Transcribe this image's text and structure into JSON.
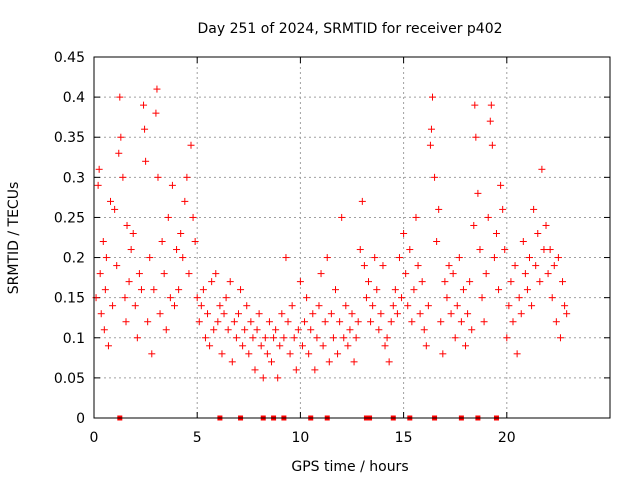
{
  "chart_data": {
    "type": "scatter",
    "title": "Day 251 of 2024, SRMTID for receiver p402",
    "xlabel": "GPS time / hours",
    "ylabel": "SRMTID / TECUs",
    "xlim": [
      0,
      25
    ],
    "ylim": [
      0,
      0.45
    ],
    "grid": true,
    "marker": "+",
    "marker_color": "#ff0000",
    "x_tick_labels": [
      "0",
      "5",
      "10",
      "15",
      "20"
    ],
    "x_ticks": [
      0,
      5,
      10,
      15,
      20
    ],
    "y_tick_labels": [
      "0",
      "0.05",
      "0.1",
      "0.15",
      "0.2",
      "0.25",
      "0.3",
      "0.35",
      "0.4",
      "0.45"
    ],
    "y_ticks": [
      0,
      0.05,
      0.1,
      0.15,
      0.2,
      0.25,
      0.3,
      0.35,
      0.4,
      0.45
    ],
    "baseline_markers_x": [
      1.25,
      6.1,
      7.1,
      8.2,
      8.7,
      9.2,
      10.5,
      11.3,
      13.2,
      13.35,
      14.5,
      15.3,
      16.5,
      17.8,
      18.6,
      19.5
    ],
    "series": [
      {
        "name": "SRMTID",
        "points": [
          [
            0.1,
            0.15
          ],
          [
            0.2,
            0.29
          ],
          [
            0.25,
            0.31
          ],
          [
            0.3,
            0.18
          ],
          [
            0.35,
            0.13
          ],
          [
            0.45,
            0.22
          ],
          [
            0.5,
            0.11
          ],
          [
            0.55,
            0.16
          ],
          [
            0.6,
            0.2
          ],
          [
            0.7,
            0.09
          ],
          [
            0.8,
            0.27
          ],
          [
            0.9,
            0.14
          ],
          [
            1.0,
            0.26
          ],
          [
            1.1,
            0.19
          ],
          [
            1.2,
            0.33
          ],
          [
            1.25,
            0.4
          ],
          [
            1.3,
            0.35
          ],
          [
            1.4,
            0.3
          ],
          [
            1.5,
            0.15
          ],
          [
            1.55,
            0.12
          ],
          [
            1.6,
            0.24
          ],
          [
            1.7,
            0.17
          ],
          [
            1.8,
            0.21
          ],
          [
            1.9,
            0.23
          ],
          [
            2.0,
            0.14
          ],
          [
            2.1,
            0.1
          ],
          [
            2.2,
            0.18
          ],
          [
            2.3,
            0.16
          ],
          [
            2.4,
            0.39
          ],
          [
            2.45,
            0.36
          ],
          [
            2.5,
            0.32
          ],
          [
            2.6,
            0.12
          ],
          [
            2.7,
            0.2
          ],
          [
            2.8,
            0.08
          ],
          [
            2.9,
            0.16
          ],
          [
            3.0,
            0.38
          ],
          [
            3.05,
            0.41
          ],
          [
            3.1,
            0.3
          ],
          [
            3.2,
            0.13
          ],
          [
            3.3,
            0.22
          ],
          [
            3.4,
            0.18
          ],
          [
            3.5,
            0.11
          ],
          [
            3.6,
            0.25
          ],
          [
            3.7,
            0.15
          ],
          [
            3.8,
            0.29
          ],
          [
            3.9,
            0.14
          ],
          [
            4.0,
            0.21
          ],
          [
            4.1,
            0.16
          ],
          [
            4.2,
            0.23
          ],
          [
            4.3,
            0.2
          ],
          [
            4.4,
            0.27
          ],
          [
            4.5,
            0.3
          ],
          [
            4.6,
            0.18
          ],
          [
            4.7,
            0.34
          ],
          [
            4.8,
            0.25
          ],
          [
            4.9,
            0.22
          ],
          [
            5.0,
            0.15
          ],
          [
            5.1,
            0.12
          ],
          [
            5.2,
            0.14
          ],
          [
            5.3,
            0.16
          ],
          [
            5.4,
            0.1
          ],
          [
            5.5,
            0.13
          ],
          [
            5.6,
            0.09
          ],
          [
            5.7,
            0.17
          ],
          [
            5.8,
            0.11
          ],
          [
            5.9,
            0.18
          ],
          [
            6.0,
            0.12
          ],
          [
            6.1,
            0.14
          ],
          [
            6.2,
            0.08
          ],
          [
            6.3,
            0.13
          ],
          [
            6.4,
            0.15
          ],
          [
            6.5,
            0.11
          ],
          [
            6.6,
            0.17
          ],
          [
            6.7,
            0.07
          ],
          [
            6.8,
            0.12
          ],
          [
            6.9,
            0.1
          ],
          [
            7.0,
            0.13
          ],
          [
            7.1,
            0.16
          ],
          [
            7.2,
            0.09
          ],
          [
            7.3,
            0.11
          ],
          [
            7.4,
            0.14
          ],
          [
            7.5,
            0.08
          ],
          [
            7.6,
            0.12
          ],
          [
            7.7,
            0.1
          ],
          [
            7.8,
            0.06
          ],
          [
            7.9,
            0.11
          ],
          [
            8.0,
            0.13
          ],
          [
            8.1,
            0.09
          ],
          [
            8.2,
            0.05
          ],
          [
            8.3,
            0.1
          ],
          [
            8.4,
            0.08
          ],
          [
            8.5,
            0.12
          ],
          [
            8.6,
            0.07
          ],
          [
            8.7,
            0.1
          ],
          [
            8.8,
            0.11
          ],
          [
            8.9,
            0.05
          ],
          [
            9.0,
            0.09
          ],
          [
            9.1,
            0.13
          ],
          [
            9.2,
            0.1
          ],
          [
            9.3,
            0.2
          ],
          [
            9.4,
            0.12
          ],
          [
            9.5,
            0.08
          ],
          [
            9.6,
            0.14
          ],
          [
            9.7,
            0.1
          ],
          [
            9.8,
            0.06
          ],
          [
            9.9,
            0.11
          ],
          [
            10.0,
            0.17
          ],
          [
            10.1,
            0.09
          ],
          [
            10.2,
            0.12
          ],
          [
            10.3,
            0.15
          ],
          [
            10.4,
            0.08
          ],
          [
            10.5,
            0.11
          ],
          [
            10.6,
            0.13
          ],
          [
            10.7,
            0.06
          ],
          [
            10.8,
            0.1
          ],
          [
            10.9,
            0.14
          ],
          [
            11.0,
            0.18
          ],
          [
            11.1,
            0.09
          ],
          [
            11.2,
            0.12
          ],
          [
            11.3,
            0.2
          ],
          [
            11.4,
            0.07
          ],
          [
            11.5,
            0.13
          ],
          [
            11.6,
            0.1
          ],
          [
            11.7,
            0.16
          ],
          [
            11.8,
            0.08
          ],
          [
            11.9,
            0.12
          ],
          [
            12.0,
            0.25
          ],
          [
            12.1,
            0.1
          ],
          [
            12.2,
            0.14
          ],
          [
            12.3,
            0.09
          ],
          [
            12.4,
            0.11
          ],
          [
            12.5,
            0.13
          ],
          [
            12.6,
            0.07
          ],
          [
            12.7,
            0.1
          ],
          [
            12.8,
            0.12
          ],
          [
            12.9,
            0.21
          ],
          [
            13.0,
            0.27
          ],
          [
            13.1,
            0.19
          ],
          [
            13.2,
            0.15
          ],
          [
            13.3,
            0.17
          ],
          [
            13.4,
            0.12
          ],
          [
            13.5,
            0.14
          ],
          [
            13.6,
            0.2
          ],
          [
            13.7,
            0.16
          ],
          [
            13.8,
            0.11
          ],
          [
            13.9,
            0.13
          ],
          [
            14.0,
            0.19
          ],
          [
            14.1,
            0.09
          ],
          [
            14.2,
            0.1
          ],
          [
            14.3,
            0.07
          ],
          [
            14.4,
            0.12
          ],
          [
            14.5,
            0.14
          ],
          [
            14.6,
            0.16
          ],
          [
            14.7,
            0.13
          ],
          [
            14.8,
            0.2
          ],
          [
            14.9,
            0.15
          ],
          [
            15.0,
            0.23
          ],
          [
            15.1,
            0.18
          ],
          [
            15.2,
            0.14
          ],
          [
            15.3,
            0.21
          ],
          [
            15.4,
            0.12
          ],
          [
            15.5,
            0.16
          ],
          [
            15.6,
            0.25
          ],
          [
            15.7,
            0.19
          ],
          [
            15.8,
            0.13
          ],
          [
            15.9,
            0.17
          ],
          [
            16.0,
            0.11
          ],
          [
            16.1,
            0.09
          ],
          [
            16.2,
            0.14
          ],
          [
            16.3,
            0.34
          ],
          [
            16.35,
            0.36
          ],
          [
            16.4,
            0.4
          ],
          [
            16.5,
            0.3
          ],
          [
            16.6,
            0.22
          ],
          [
            16.7,
            0.26
          ],
          [
            16.8,
            0.12
          ],
          [
            16.9,
            0.08
          ],
          [
            17.0,
            0.17
          ],
          [
            17.1,
            0.15
          ],
          [
            17.2,
            0.19
          ],
          [
            17.3,
            0.13
          ],
          [
            17.4,
            0.18
          ],
          [
            17.5,
            0.1
          ],
          [
            17.6,
            0.14
          ],
          [
            17.7,
            0.2
          ],
          [
            17.8,
            0.12
          ],
          [
            17.9,
            0.16
          ],
          [
            18.0,
            0.09
          ],
          [
            18.1,
            0.13
          ],
          [
            18.2,
            0.17
          ],
          [
            18.3,
            0.11
          ],
          [
            18.4,
            0.24
          ],
          [
            18.45,
            0.39
          ],
          [
            18.5,
            0.35
          ],
          [
            18.6,
            0.28
          ],
          [
            18.7,
            0.21
          ],
          [
            18.8,
            0.15
          ],
          [
            18.9,
            0.12
          ],
          [
            19.0,
            0.18
          ],
          [
            19.1,
            0.25
          ],
          [
            19.2,
            0.37
          ],
          [
            19.25,
            0.39
          ],
          [
            19.3,
            0.34
          ],
          [
            19.4,
            0.2
          ],
          [
            19.5,
            0.23
          ],
          [
            19.6,
            0.16
          ],
          [
            19.7,
            0.29
          ],
          [
            19.8,
            0.26
          ],
          [
            19.9,
            0.21
          ],
          [
            20.0,
            0.1
          ],
          [
            20.1,
            0.14
          ],
          [
            20.2,
            0.17
          ],
          [
            20.3,
            0.12
          ],
          [
            20.4,
            0.19
          ],
          [
            20.5,
            0.08
          ],
          [
            20.6,
            0.15
          ],
          [
            20.7,
            0.13
          ],
          [
            20.8,
            0.22
          ],
          [
            20.9,
            0.18
          ],
          [
            21.0,
            0.16
          ],
          [
            21.1,
            0.2
          ],
          [
            21.2,
            0.14
          ],
          [
            21.3,
            0.26
          ],
          [
            21.4,
            0.19
          ],
          [
            21.5,
            0.23
          ],
          [
            21.6,
            0.17
          ],
          [
            21.7,
            0.31
          ],
          [
            21.8,
            0.21
          ],
          [
            21.9,
            0.24
          ],
          [
            22.0,
            0.18
          ],
          [
            22.1,
            0.21
          ],
          [
            22.2,
            0.15
          ],
          [
            22.3,
            0.19
          ],
          [
            22.4,
            0.12
          ],
          [
            22.5,
            0.2
          ],
          [
            22.6,
            0.1
          ],
          [
            22.7,
            0.17
          ],
          [
            22.8,
            0.14
          ],
          [
            22.9,
            0.13
          ]
        ]
      }
    ]
  }
}
